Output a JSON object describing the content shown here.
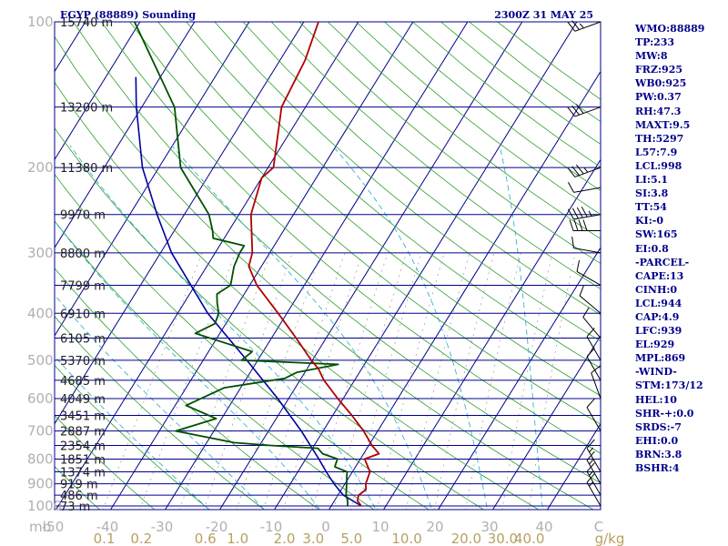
{
  "header": {
    "title": "EGYP (88889) Sounding",
    "time": "2300Z 31 MAY 25"
  },
  "side_panel": [
    "WMO:88889",
    "TP:233",
    "MW:8",
    "FRZ:925",
    "WB0:925",
    "PW:0.37",
    "RH:47.3",
    "MAXT:9.5",
    "TH:5297",
    "L57:7.9",
    "LCL:998",
    "LI:5.1",
    "SI:3.8",
    "TT:54",
    "KI:-0",
    "SW:165",
    "EI:0.8",
    "-PARCEL-",
    "CAPE:13",
    "CINH:0",
    "LCL:944",
    "CAP:4.9",
    "LFC:939",
    "EL:929",
    "MPL:869",
    "-WIND-",
    "STM:173/12",
    "HEL:10",
    "SHR-+:0.0",
    "SRDS:-7",
    "EHI:0.0",
    "BRN:3.8",
    "BSHR:4"
  ],
  "chart_data": {
    "type": "skew-t log-p sounding",
    "pressure_levels_hpa": [
      100,
      200,
      300,
      400,
      500,
      600,
      700,
      800,
      900,
      1000
    ],
    "height_labels": [
      {
        "p": 100,
        "text": "15740 m"
      },
      {
        "p": 150,
        "text": "13200 m"
      },
      {
        "p": 200,
        "text": "11380 m"
      },
      {
        "p": 250,
        "text": "9970 m"
      },
      {
        "p": 300,
        "text": "8800 m"
      },
      {
        "p": 350,
        "text": "7799 m"
      },
      {
        "p": 400,
        "text": "6910 m"
      },
      {
        "p": 450,
        "text": "6105 m"
      },
      {
        "p": 500,
        "text": "5370 m"
      },
      {
        "p": 550,
        "text": "4685 m"
      },
      {
        "p": 600,
        "text": "4049 m"
      },
      {
        "p": 650,
        "text": "3451 m"
      },
      {
        "p": 700,
        "text": "2887 m"
      },
      {
        "p": 750,
        "text": "2354 m"
      },
      {
        "p": 800,
        "text": "1851 m"
      },
      {
        "p": 850,
        "text": "1374 m"
      },
      {
        "p": 900,
        "text": "919 m"
      },
      {
        "p": 950,
        "text": "486 m"
      },
      {
        "p": 1000,
        "text": "73 m"
      }
    ],
    "temperature_axis": {
      "label": "C",
      "ticks": [
        -50,
        -40,
        -30,
        -20,
        -10,
        0,
        10,
        20,
        30,
        40
      ],
      "range": [
        -50,
        50
      ]
    },
    "pressure_axis_label": "mb",
    "mixing_ratio_ticks": [
      0.1,
      0.2,
      0.6,
      1.0,
      2.0,
      3.0,
      5.0,
      10.0,
      20.0,
      30.0,
      40.0
    ],
    "mixing_ratio_label": "g/kg",
    "temperature_profile": [
      {
        "p": 1000,
        "t": 5.5
      },
      {
        "p": 975,
        "t": 4.2
      },
      {
        "p": 950,
        "t": 3.8
      },
      {
        "p": 925,
        "t": 4.5
      },
      {
        "p": 900,
        "t": 3.8
      },
      {
        "p": 850,
        "t": 3.2
      },
      {
        "p": 800,
        "t": 0.8
      },
      {
        "p": 780,
        "t": 2.8
      },
      {
        "p": 750,
        "t": 0.6
      },
      {
        "p": 700,
        "t": -2.6
      },
      {
        "p": 650,
        "t": -6.5
      },
      {
        "p": 600,
        "t": -11.0
      },
      {
        "p": 550,
        "t": -15.6
      },
      {
        "p": 520,
        "t": -18.0
      },
      {
        "p": 500,
        "t": -20.2
      },
      {
        "p": 450,
        "t": -25.5
      },
      {
        "p": 400,
        "t": -31.6
      },
      {
        "p": 350,
        "t": -38.7
      },
      {
        "p": 320,
        "t": -42.3
      },
      {
        "p": 300,
        "t": -43.2
      },
      {
        "p": 250,
        "t": -47.8
      },
      {
        "p": 210,
        "t": -50.0
      },
      {
        "p": 200,
        "t": -49.0
      },
      {
        "p": 150,
        "t": -54.4
      },
      {
        "p": 120,
        "t": -55.4
      },
      {
        "p": 100,
        "t": -57.3
      }
    ],
    "dewpoint_profile": [
      {
        "p": 1000,
        "td": 3.0
      },
      {
        "p": 975,
        "td": 2.4
      },
      {
        "p": 950,
        "td": 1.5
      },
      {
        "p": 900,
        "td": 0.3
      },
      {
        "p": 850,
        "td": -1.0
      },
      {
        "p": 830,
        "td": -3.8
      },
      {
        "p": 800,
        "td": -4.2
      },
      {
        "p": 780,
        "td": -7.5
      },
      {
        "p": 760,
        "td": -9.0
      },
      {
        "p": 750,
        "td": -18.0
      },
      {
        "p": 740,
        "td": -25.0
      },
      {
        "p": 700,
        "td": -37.0
      },
      {
        "p": 660,
        "td": -31.0
      },
      {
        "p": 620,
        "td": -38.0
      },
      {
        "p": 570,
        "td": -33.0
      },
      {
        "p": 545,
        "td": -23.0
      },
      {
        "p": 530,
        "td": -21.5
      },
      {
        "p": 510,
        "td": -14.8
      },
      {
        "p": 500,
        "td": -33.0
      },
      {
        "p": 480,
        "td": -32.0
      },
      {
        "p": 440,
        "td": -44.5
      },
      {
        "p": 420,
        "td": -42.0
      },
      {
        "p": 400,
        "td": -42.5
      },
      {
        "p": 380,
        "td": -44.0
      },
      {
        "p": 365,
        "td": -45.0
      },
      {
        "p": 350,
        "td": -43.5
      },
      {
        "p": 320,
        "td": -45.0
      },
      {
        "p": 300,
        "td": -45.5
      },
      {
        "p": 290,
        "td": -45.5
      },
      {
        "p": 280,
        "td": -52.0
      },
      {
        "p": 270,
        "td": -53.0
      },
      {
        "p": 250,
        "td": -55.5
      },
      {
        "p": 200,
        "td": -66.0
      },
      {
        "p": 150,
        "td": -74.0
      },
      {
        "p": 100,
        "td": -91.0
      }
    ],
    "parcel_profile": [
      {
        "p": 1000,
        "t": 5.5
      },
      {
        "p": 950,
        "t": 1.0
      },
      {
        "p": 900,
        "t": -2.0
      },
      {
        "p": 850,
        "t": -4.8
      },
      {
        "p": 800,
        "t": -7.6
      },
      {
        "p": 700,
        "t": -14.0
      },
      {
        "p": 600,
        "t": -22.0
      },
      {
        "p": 500,
        "t": -32.0
      },
      {
        "p": 400,
        "t": -44.5
      },
      {
        "p": 300,
        "t": -58.0
      },
      {
        "p": 250,
        "t": -65.0
      },
      {
        "p": 200,
        "t": -73.0
      },
      {
        "p": 150,
        "t": -81.0
      },
      {
        "p": 130,
        "t": -84.5
      }
    ],
    "wind_barbs": [
      {
        "p": 100,
        "dir": 250,
        "kt": 25
      },
      {
        "p": 150,
        "dir": 250,
        "kt": 30
      },
      {
        "p": 200,
        "dir": 250,
        "kt": 35
      },
      {
        "p": 220,
        "dir": 260,
        "kt": 10
      },
      {
        "p": 250,
        "dir": 260,
        "kt": 45
      },
      {
        "p": 270,
        "dir": 270,
        "kt": 40
      },
      {
        "p": 300,
        "dir": 280,
        "kt": 10
      },
      {
        "p": 350,
        "dir": 300,
        "kt": 10
      },
      {
        "p": 400,
        "dir": 310,
        "kt": 10
      },
      {
        "p": 450,
        "dir": 320,
        "kt": 10
      },
      {
        "p": 500,
        "dir": 330,
        "kt": 10
      },
      {
        "p": 550,
        "dir": 330,
        "kt": 10
      },
      {
        "p": 600,
        "dir": 340,
        "kt": 10
      },
      {
        "p": 700,
        "dir": 330,
        "kt": 10
      },
      {
        "p": 850,
        "dir": 330,
        "kt": 15
      },
      {
        "p": 900,
        "dir": 330,
        "kt": 15
      },
      {
        "p": 950,
        "dir": 330,
        "kt": 15
      },
      {
        "p": 1000,
        "dir": 330,
        "kt": 15
      }
    ],
    "colors": {
      "isobar": "#00008b",
      "isotherm": "#00008b",
      "dry_adiabat": "#2e9e2e",
      "moist_adiabat": "#22aacc",
      "mixing_ratio": "#888888",
      "temperature": "#b00000",
      "dewpoint": "#005000",
      "parcel": "#0000a0",
      "barb": "#000000"
    }
  }
}
